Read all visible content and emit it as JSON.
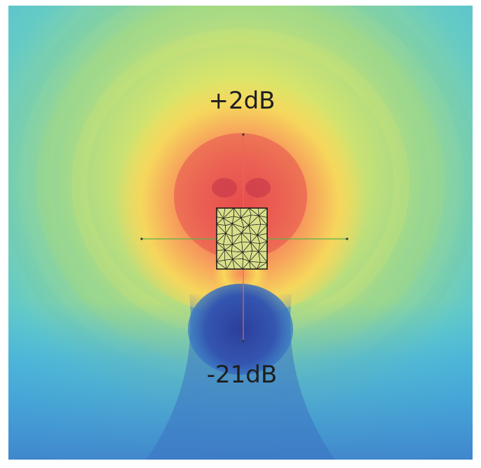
{
  "figure": {
    "label_top": "+2dB",
    "label_bottom": "-21dB",
    "colors": {
      "peak": "#e94b4b",
      "hot": "#f58c57",
      "warm": "#f8d85a",
      "yellow": "#eef06b",
      "green": "#a9d96c",
      "teal": "#62c9c7",
      "cyan": "#3fb7e8",
      "blue": "#3b8fd3",
      "deep": "#3f5fb8",
      "null": "#2b3f9a",
      "mesh_fill": "#d9df8a",
      "mesh_lines": "#1a1a1a",
      "axis_horizontal": "#5fb04a",
      "axis_vertical": "#e06a5a"
    }
  }
}
